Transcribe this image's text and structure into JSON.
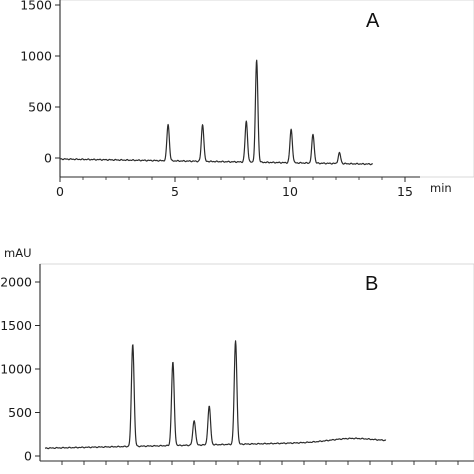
{
  "chart_data": [
    {
      "type": "line",
      "panel_label": "A",
      "x_unit": "min",
      "y_unit": "",
      "xlim": [
        0,
        15
      ],
      "ylim": [
        -100,
        1550
      ],
      "x_ticks": [
        0,
        5,
        10,
        15
      ],
      "y_ticks": [
        0,
        500,
        1000,
        1500
      ],
      "x_tick_labels": [
        "0",
        "5",
        "10",
        "15"
      ],
      "y_tick_labels": [
        "0",
        "500",
        "1000",
        "1500"
      ],
      "baseline": {
        "start_x": 0,
        "start_y": -10,
        "end_x": 13.6,
        "end_y": -60
      },
      "series": [
        {
          "peaks": [
            {
              "x": 4.7,
              "y": 330
            },
            {
              "x": 6.2,
              "y": 330
            },
            {
              "x": 8.1,
              "y": 360
            },
            {
              "x": 8.55,
              "y": 960
            },
            {
              "x": 10.05,
              "y": 280
            },
            {
              "x": 11.0,
              "y": 230
            },
            {
              "x": 12.15,
              "y": 50
            }
          ]
        }
      ]
    },
    {
      "type": "line",
      "panel_label": "B",
      "x_unit": "",
      "y_unit": "mAU",
      "xlim": [
        -0.5,
        15
      ],
      "ylim": [
        -50,
        2150
      ],
      "x_ticks": [],
      "y_ticks": [
        0,
        500,
        1000,
        1500,
        2000
      ],
      "x_tick_labels": [],
      "y_tick_labels": [
        "0",
        "500",
        "1000",
        "1500",
        "2000"
      ],
      "baseline": {
        "start_x": 0,
        "start_y": 90,
        "end_x": 13.6,
        "end_y": 170
      },
      "series": [
        {
          "peaks": [
            {
              "x": 3.5,
              "y": 1290
            },
            {
              "x": 5.1,
              "y": 1080
            },
            {
              "x": 5.95,
              "y": 410
            },
            {
              "x": 6.55,
              "y": 570
            },
            {
              "x": 7.6,
              "y": 1320
            }
          ]
        }
      ]
    }
  ]
}
